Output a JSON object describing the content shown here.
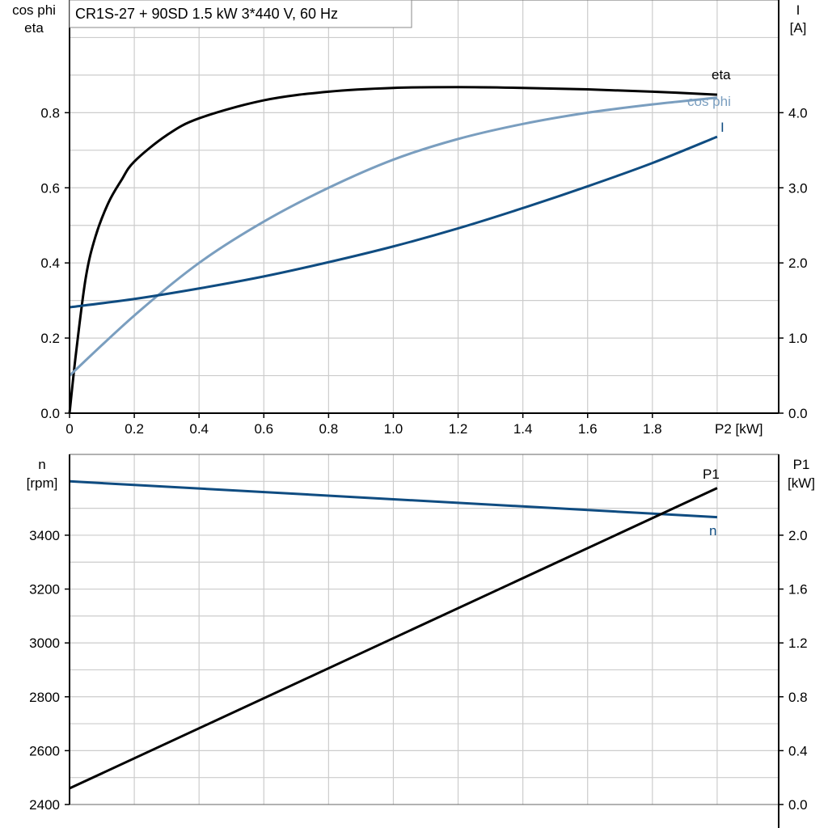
{
  "title": "CR1S-27 + 90SD   1.5 kW   3*440 V, 60 Hz",
  "chart_data": [
    {
      "type": "line",
      "xlabel": "P2 [kW]",
      "ylabel_left": [
        "cos phi",
        "eta"
      ],
      "ylabel_right": [
        "I",
        "[A]"
      ],
      "xlim": [
        0,
        2.19
      ],
      "ylim_left": [
        0,
        1.1
      ],
      "ylim_right": [
        0,
        5.5
      ],
      "x_ticks": [
        "0",
        "0.2",
        "0.4",
        "0.6",
        "0.8",
        "1.0",
        "1.2",
        "1.4",
        "1.6",
        "1.8"
      ],
      "y_ticks_left": [
        "0.0",
        "0.2",
        "0.4",
        "0.6",
        "0.8"
      ],
      "y_ticks_right": [
        "0.0",
        "1.0",
        "2.0",
        "3.0",
        "4.0"
      ],
      "grid": true,
      "series": [
        {
          "name": "eta",
          "axis": "left",
          "color": "#000000",
          "x": [
            0,
            0.02,
            0.05,
            0.08,
            0.12,
            0.16,
            0.2,
            0.3,
            0.4,
            0.6,
            0.8,
            1.0,
            1.2,
            1.4,
            1.6,
            1.8,
            2.0
          ],
          "y": [
            0,
            0.16,
            0.36,
            0.47,
            0.56,
            0.62,
            0.67,
            0.74,
            0.785,
            0.833,
            0.856,
            0.866,
            0.868,
            0.866,
            0.862,
            0.856,
            0.848
          ]
        },
        {
          "name": "cos phi",
          "axis": "left",
          "color": "#7a9ebf",
          "x": [
            0,
            0.2,
            0.4,
            0.6,
            0.8,
            1.0,
            1.2,
            1.4,
            1.6,
            1.8,
            2.0
          ],
          "y": [
            0.1,
            0.26,
            0.4,
            0.51,
            0.6,
            0.675,
            0.73,
            0.77,
            0.8,
            0.822,
            0.84
          ]
        },
        {
          "name": "I",
          "axis": "right",
          "color": "#0f4c81",
          "x": [
            0,
            0.2,
            0.4,
            0.6,
            0.8,
            1.0,
            1.2,
            1.4,
            1.6,
            1.8,
            2.0
          ],
          "y": [
            1.41,
            1.52,
            1.66,
            1.82,
            2.01,
            2.22,
            2.46,
            2.73,
            3.02,
            3.33,
            3.68
          ]
        }
      ]
    },
    {
      "type": "line",
      "ylabel_left": [
        "n",
        "[rpm]"
      ],
      "ylabel_right": [
        "P1",
        "[kW]"
      ],
      "xlim": [
        0,
        2.19
      ],
      "ylim_left": [
        2400,
        3700
      ],
      "ylim_right": [
        0,
        2.6
      ],
      "y_ticks_left": [
        "2400",
        "2600",
        "2800",
        "3000",
        "3200",
        "3400"
      ],
      "y_ticks_right": [
        "0.0",
        "0.4",
        "0.8",
        "1.2",
        "1.6",
        "2.0"
      ],
      "grid": true,
      "series": [
        {
          "name": "n",
          "axis": "left",
          "color": "#0f4c81",
          "x": [
            0,
            2.0
          ],
          "y": [
            3600,
            3467
          ]
        },
        {
          "name": "P1",
          "axis": "right",
          "color": "#000000",
          "x": [
            0,
            2.0
          ],
          "y": [
            0.12,
            2.35
          ]
        }
      ]
    }
  ]
}
